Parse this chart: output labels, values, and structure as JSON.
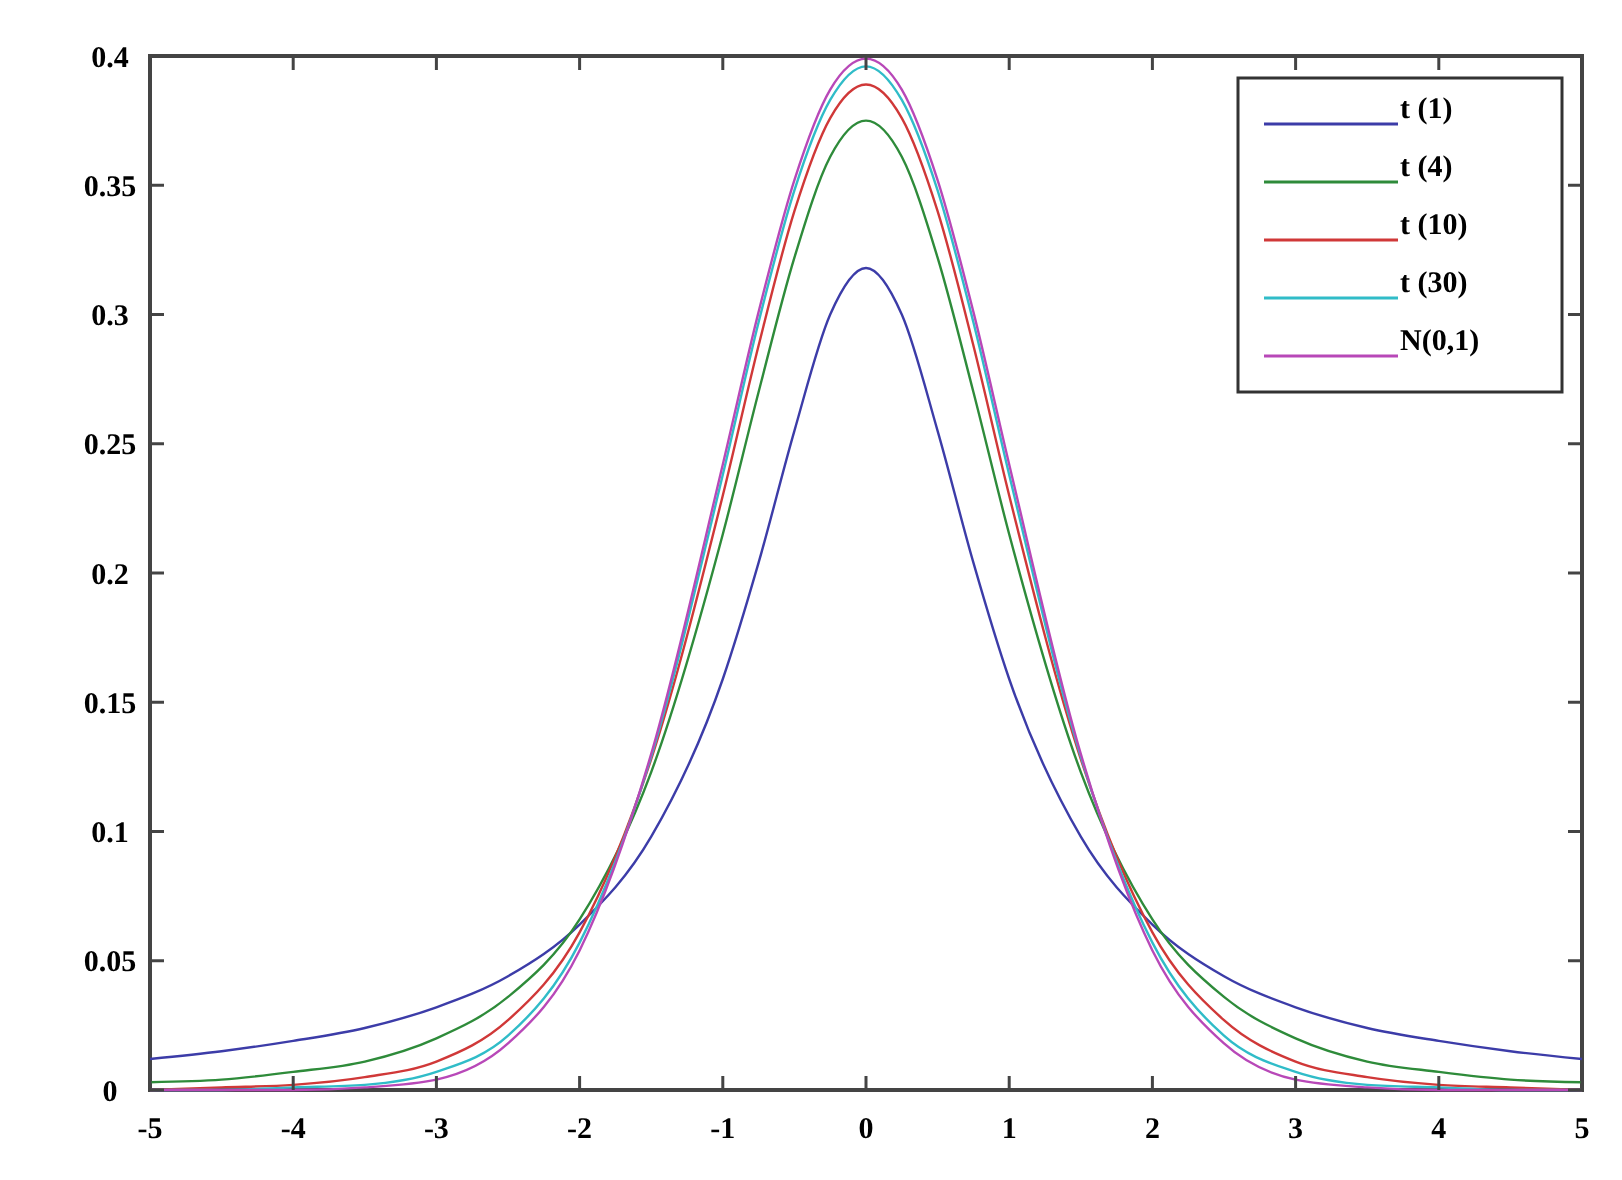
{
  "chart_data": {
    "type": "line",
    "x": [
      -5,
      -4.5,
      -4,
      -3.5,
      -3,
      -2.5,
      -2,
      -1.5,
      -1,
      -0.75,
      -0.5,
      -0.25,
      0,
      0.25,
      0.5,
      0.75,
      1,
      1.5,
      2,
      2.5,
      3,
      3.5,
      4,
      4.5,
      5
    ],
    "series": [
      {
        "name": "t (1)",
        "color": "#3c3ca8",
        "values": [
          0.012,
          0.015,
          0.019,
          0.024,
          0.032,
          0.044,
          0.064,
          0.098,
          0.159,
          0.204,
          0.255,
          0.3,
          0.318,
          0.3,
          0.255,
          0.204,
          0.159,
          0.098,
          0.064,
          0.044,
          0.032,
          0.024,
          0.019,
          0.015,
          0.012
        ]
      },
      {
        "name": "t (4)",
        "color": "#2e8b3a",
        "values": [
          0.003,
          0.004,
          0.007,
          0.011,
          0.02,
          0.036,
          0.066,
          0.123,
          0.215,
          0.27,
          0.322,
          0.361,
          0.375,
          0.361,
          0.322,
          0.27,
          0.215,
          0.123,
          0.066,
          0.036,
          0.02,
          0.011,
          0.007,
          0.004,
          0.003
        ]
      },
      {
        "name": "t (10)",
        "color": "#d03838",
        "values": [
          0.0,
          0.001,
          0.002,
          0.005,
          0.011,
          0.027,
          0.061,
          0.128,
          0.23,
          0.288,
          0.34,
          0.376,
          0.389,
          0.376,
          0.34,
          0.288,
          0.23,
          0.128,
          0.061,
          0.027,
          0.011,
          0.005,
          0.002,
          0.001,
          0.0
        ]
      },
      {
        "name": "t (30)",
        "color": "#30bcc8",
        "values": [
          0.0,
          0.0,
          0.001,
          0.002,
          0.007,
          0.021,
          0.057,
          0.129,
          0.238,
          0.297,
          0.348,
          0.383,
          0.396,
          0.383,
          0.348,
          0.297,
          0.238,
          0.129,
          0.057,
          0.021,
          0.007,
          0.002,
          0.001,
          0.0,
          0.0
        ]
      },
      {
        "name": "N(0,1)",
        "color": "#b848b8",
        "values": [
          0.0,
          0.0,
          0.0,
          0.001,
          0.004,
          0.018,
          0.054,
          0.13,
          0.242,
          0.301,
          0.352,
          0.387,
          0.399,
          0.387,
          0.352,
          0.301,
          0.242,
          0.13,
          0.054,
          0.018,
          0.004,
          0.001,
          0.0,
          0.0,
          0.0
        ]
      }
    ],
    "xlim": [
      -5,
      5
    ],
    "xticks": [
      -5,
      -4,
      -3,
      -2,
      -1,
      0,
      1,
      2,
      3,
      4,
      5
    ],
    "ylim": [
      0,
      0.4
    ],
    "yticks": [
      0,
      0.05,
      0.1,
      0.15,
      0.2,
      0.25,
      0.3,
      0.35,
      0.4
    ],
    "grid": false,
    "legend": "top right",
    "marker": "none",
    "line_style": "solid"
  }
}
